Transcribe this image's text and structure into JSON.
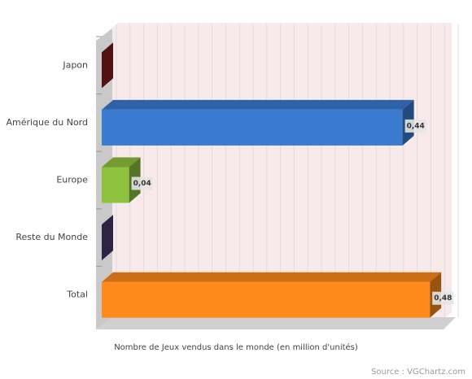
{
  "chart_data": {
    "type": "bar",
    "orientation": "horizontal",
    "categories": [
      "Japon",
      "Amérique du Nord",
      "Europe",
      "Reste du Monde",
      "Total"
    ],
    "values": [
      0,
      0.44,
      0.04,
      0,
      0.48
    ],
    "value_labels": [
      null,
      "0,44",
      "0,04",
      null,
      "0,48"
    ],
    "colors": [
      "#8b1c1c",
      "#3a7bd0",
      "#8fc23e",
      "#4b3a70",
      "#ff8a1c"
    ],
    "xlabel": "Nombre de Jeux vendus dans le monde (en million d'unités)",
    "source": "Source : VGChartz.com",
    "xlim": [
      0,
      0.5
    ],
    "xticks": [
      0,
      0.02,
      0.04,
      0.06,
      0.08,
      0.1,
      0.12,
      0.14,
      0.16,
      0.18,
      0.2,
      0.22,
      0.24,
      0.26,
      0.28,
      0.3,
      0.32,
      0.34,
      0.36,
      0.38,
      0.4,
      0.42,
      0.44,
      0.46,
      0.48,
      0.5
    ],
    "grid": true
  }
}
